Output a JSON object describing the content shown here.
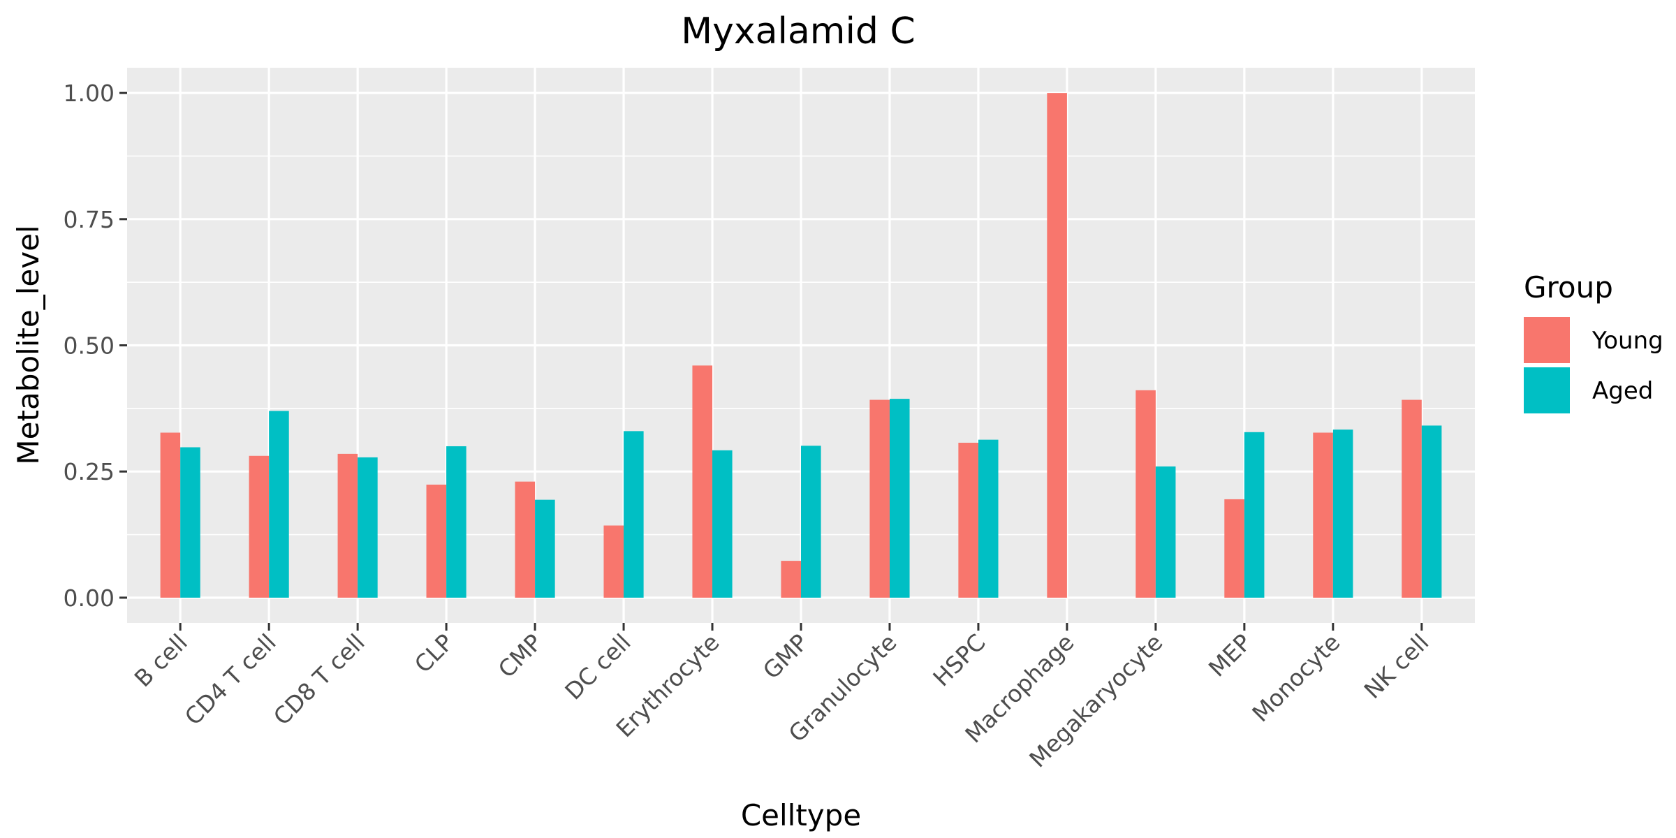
{
  "chart_data": {
    "type": "bar",
    "title": "Myxalamid C",
    "xlabel": "Celltype",
    "ylabel": "Metabolite_level",
    "ylim": [
      -0.05,
      1.05
    ],
    "yticks": [
      0.0,
      0.25,
      0.5,
      0.75,
      1.0
    ],
    "ytick_labels": [
      "0.00",
      "0.25",
      "0.50",
      "0.75",
      "1.00"
    ],
    "grid": true,
    "legend": {
      "title": "Group",
      "placement": "right"
    },
    "categories": [
      "B cell",
      "CD4 T cell",
      "CD8 T cell",
      "CLP",
      "CMP",
      "DC cell",
      "Erythrocyte",
      "GMP",
      "Granulocyte",
      "HSPC",
      "Macrophage",
      "Megakaryocyte",
      "MEP",
      "Monocyte",
      "NK cell"
    ],
    "series": [
      {
        "name": "Young",
        "color": "#F8766D",
        "values": [
          0.327,
          0.281,
          0.285,
          0.224,
          0.23,
          0.143,
          0.46,
          0.073,
          0.392,
          0.307,
          1.0,
          0.411,
          0.195,
          0.327,
          0.392
        ]
      },
      {
        "name": "Aged",
        "color": "#00BFC4",
        "values": [
          0.298,
          0.37,
          0.278,
          0.3,
          0.194,
          0.33,
          0.292,
          0.301,
          0.394,
          0.313,
          0.0,
          0.26,
          0.328,
          0.333,
          0.341
        ]
      }
    ],
    "panel_background": "#EBEBEB",
    "grid_color": "#FFFFFF"
  }
}
